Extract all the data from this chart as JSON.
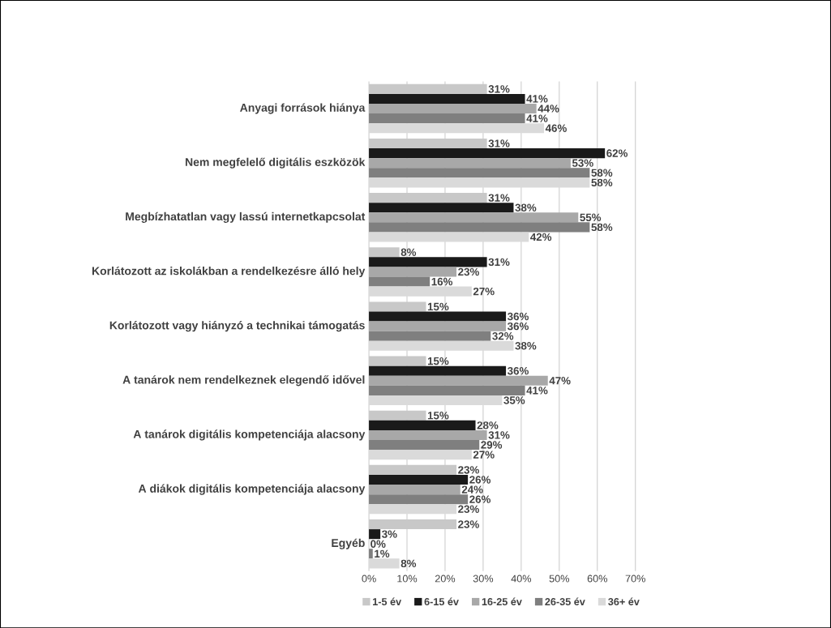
{
  "chart_data": {
    "type": "bar",
    "orientation": "horizontal",
    "categories": [
      "Anyagi források hiánya",
      "Nem megfelelő digitális eszközök",
      "Megbízhatatlan vagy lassú internetkapcsolat",
      "Korlátozott az iskolákban a rendelkezésre álló hely",
      "Korlátozott vagy hiányzó a technikai támogatás",
      "A tanárok nem rendelkeznek elegendő idővel",
      "A tanárok digitális kompetenciája alacsony",
      "A diákok digitális kompetenciája alacsony",
      "Egyéb"
    ],
    "series": [
      {
        "name": "1-5 év",
        "color": "#c8c8c8",
        "values": [
          31,
          31,
          31,
          8,
          15,
          15,
          15,
          23,
          23
        ],
        "value_labels": [
          "31%",
          "31%",
          "31%",
          "8%",
          "15%",
          "15%",
          "15%",
          "23%",
          "23%"
        ]
      },
      {
        "name": "6-15 év",
        "color": "#1a1a1a",
        "values": [
          41,
          62,
          38,
          31,
          36,
          36,
          28,
          26,
          3
        ],
        "value_labels": [
          "41%",
          "62%",
          "38%",
          "31%",
          "36%",
          "36%",
          "28%",
          "26%",
          "3%"
        ]
      },
      {
        "name": "16-25 év",
        "color": "#a8a8a8",
        "values": [
          44,
          53,
          55,
          23,
          36,
          47,
          31,
          24,
          0
        ],
        "value_labels": [
          "44%",
          "53%",
          "55%",
          "23%",
          "36%",
          "47%",
          "31%",
          "24%",
          "0%"
        ]
      },
      {
        "name": "26-35 év",
        "color": "#7f7f7f",
        "values": [
          41,
          58,
          58,
          16,
          32,
          41,
          29,
          26,
          1
        ],
        "value_labels": [
          "41%",
          "58%",
          "58%",
          "16%",
          "32%",
          "41%",
          "29%",
          "26%",
          "1%"
        ]
      },
      {
        "name": "36+ év",
        "color": "#dadada",
        "values": [
          46,
          58,
          42,
          27,
          38,
          35,
          27,
          23,
          8
        ],
        "value_labels": [
          "46%",
          "58%",
          "42%",
          "27%",
          "38%",
          "35%",
          "27%",
          "23%",
          "8%"
        ]
      }
    ],
    "xlim": [
      0,
      70
    ],
    "xticks": [
      {
        "value": 0,
        "label": "0%"
      },
      {
        "value": 10,
        "label": "10%"
      },
      {
        "value": 20,
        "label": "20%"
      },
      {
        "value": 30,
        "label": "30%"
      },
      {
        "value": 40,
        "label": "40%"
      },
      {
        "value": 50,
        "label": "50%"
      },
      {
        "value": 60,
        "label": "60%"
      },
      {
        "value": 70,
        "label": "70%"
      }
    ],
    "grid": "x",
    "legend": "bottom"
  }
}
